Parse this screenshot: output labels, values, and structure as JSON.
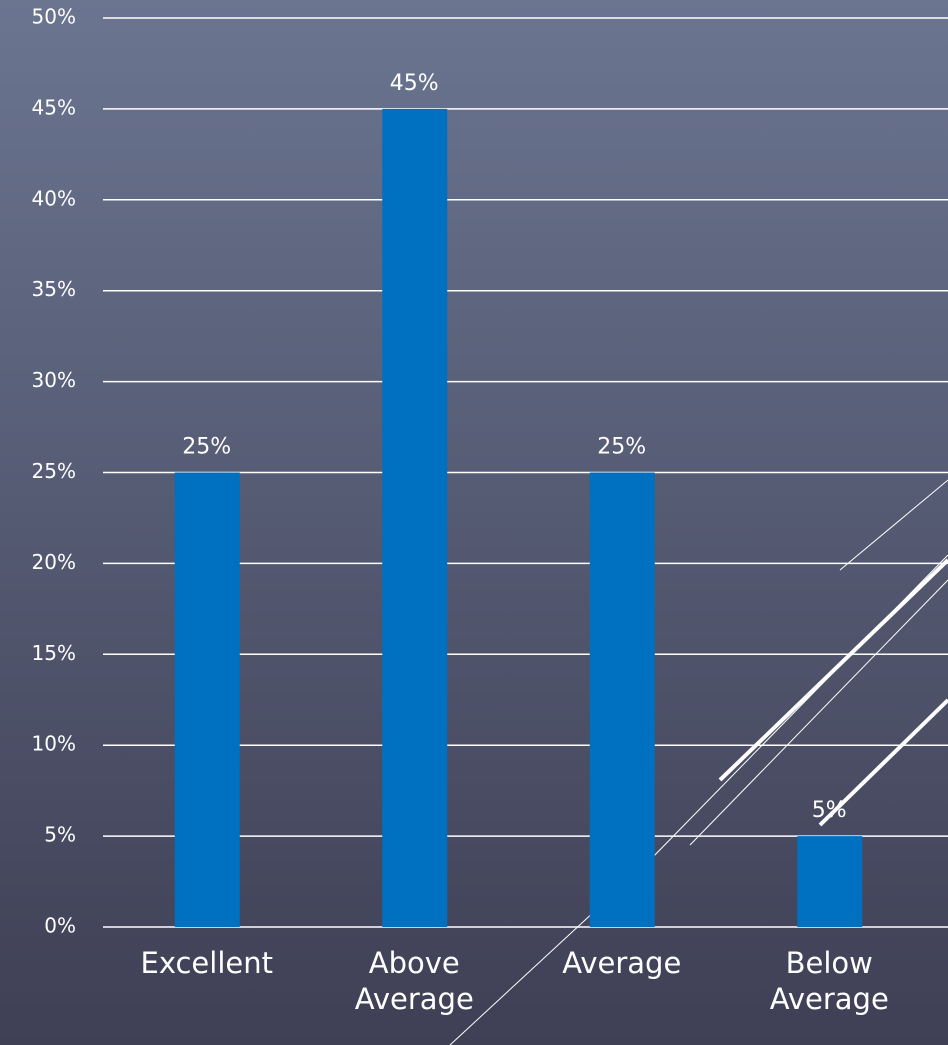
{
  "chart_data": {
    "type": "bar",
    "categories": [
      "Excellent",
      "Above Average",
      "Average",
      "Below Average"
    ],
    "values": [
      25,
      45,
      25,
      5
    ],
    "value_labels": [
      "25%",
      "45%",
      "25%",
      "5%"
    ],
    "color": "#0070c0",
    "ylim": [
      0,
      50
    ],
    "yticks": [
      {
        "value": 0,
        "label": "0%"
      },
      {
        "value": 5,
        "label": "5%"
      },
      {
        "value": 10,
        "label": "10%"
      },
      {
        "value": 15,
        "label": "15%"
      },
      {
        "value": 20,
        "label": "20%"
      },
      {
        "value": 25,
        "label": "25%"
      },
      {
        "value": 30,
        "label": "30%"
      },
      {
        "value": 35,
        "label": "35%"
      },
      {
        "value": 40,
        "label": "40%"
      },
      {
        "value": 45,
        "label": "45%"
      },
      {
        "value": 50,
        "label": "50%"
      }
    ],
    "grid": true
  }
}
